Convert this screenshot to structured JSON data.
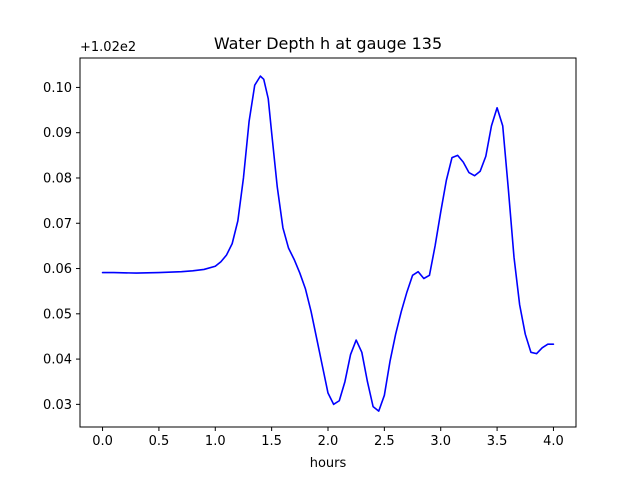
{
  "chart_data": {
    "type": "line",
    "title": "Water Depth h at gauge 135",
    "xlabel": "hours",
    "ylabel": "",
    "y_offset_label": "+1.02e2",
    "xlim": [
      -0.2,
      4.2
    ],
    "ylim": [
      0.025,
      0.1065
    ],
    "xticks": [
      0.0,
      0.5,
      1.0,
      1.5,
      2.0,
      2.5,
      3.0,
      3.5,
      4.0
    ],
    "xtick_labels": [
      "0.0",
      "0.5",
      "1.0",
      "1.5",
      "2.0",
      "2.5",
      "3.0",
      "3.5",
      "4.0"
    ],
    "yticks": [
      0.03,
      0.04,
      0.05,
      0.06,
      0.07,
      0.08,
      0.09,
      0.1
    ],
    "ytick_labels": [
      "0.03",
      "0.04",
      "0.05",
      "0.06",
      "0.07",
      "0.08",
      "0.09",
      "0.10"
    ],
    "grid": false,
    "series": [
      {
        "color": "#0000ff",
        "x": [
          0.0,
          0.1,
          0.3,
          0.5,
          0.7,
          0.8,
          0.9,
          1.0,
          1.05,
          1.1,
          1.15,
          1.2,
          1.25,
          1.3,
          1.35,
          1.4,
          1.43,
          1.47,
          1.5,
          1.55,
          1.6,
          1.65,
          1.7,
          1.75,
          1.8,
          1.85,
          1.9,
          1.95,
          2.0,
          2.05,
          2.1,
          2.15,
          2.2,
          2.25,
          2.3,
          2.35,
          2.4,
          2.45,
          2.5,
          2.55,
          2.6,
          2.65,
          2.7,
          2.75,
          2.8,
          2.85,
          2.9,
          2.95,
          3.0,
          3.05,
          3.1,
          3.15,
          3.2,
          3.25,
          3.3,
          3.35,
          3.4,
          3.45,
          3.5,
          3.55,
          3.6,
          3.65,
          3.7,
          3.75,
          3.8,
          3.85,
          3.9,
          3.95,
          4.0
        ],
        "y": [
          0.0591,
          0.0591,
          0.059,
          0.0591,
          0.0593,
          0.0595,
          0.0598,
          0.0605,
          0.0615,
          0.063,
          0.0655,
          0.0705,
          0.08,
          0.0925,
          0.1005,
          0.1025,
          0.1018,
          0.0975,
          0.09,
          0.078,
          0.069,
          0.0645,
          0.062,
          0.059,
          0.0555,
          0.0505,
          0.0445,
          0.0385,
          0.0325,
          0.03,
          0.0308,
          0.035,
          0.041,
          0.0442,
          0.0415,
          0.035,
          0.0295,
          0.0285,
          0.032,
          0.0395,
          0.0455,
          0.0505,
          0.0548,
          0.0585,
          0.0593,
          0.0578,
          0.0585,
          0.065,
          0.0725,
          0.0795,
          0.0845,
          0.085,
          0.0835,
          0.0812,
          0.0805,
          0.0815,
          0.0848,
          0.0915,
          0.0955,
          0.0915,
          0.0775,
          0.0625,
          0.052,
          0.0455,
          0.0415,
          0.0412,
          0.0425,
          0.0433,
          0.0433
        ]
      }
    ]
  }
}
